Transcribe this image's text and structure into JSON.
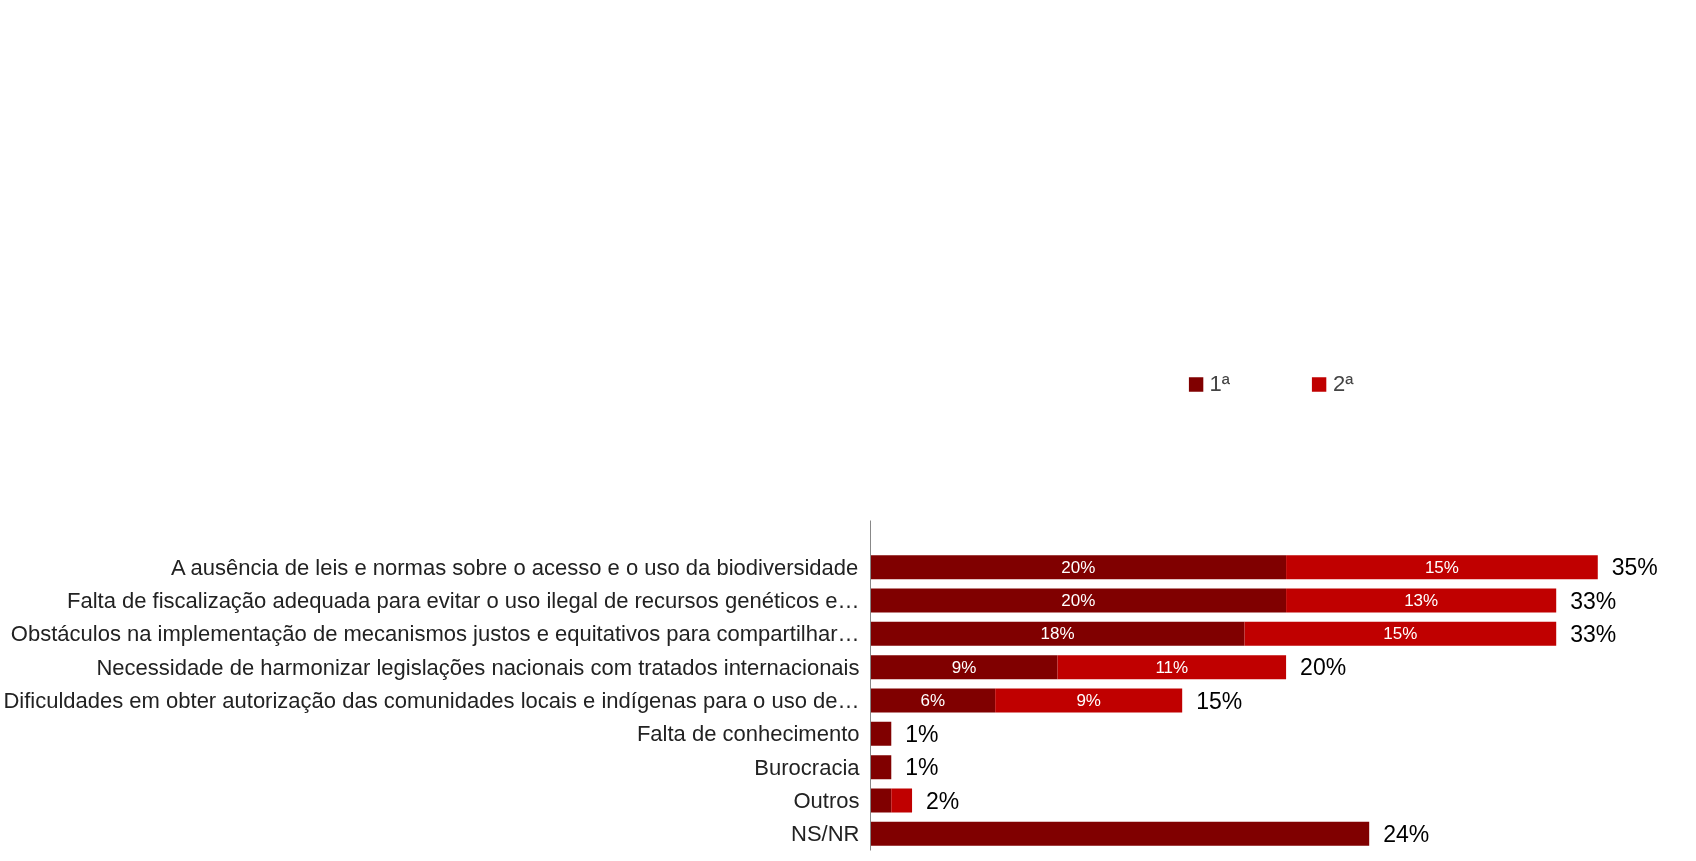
{
  "chart_data": {
    "type": "bar",
    "orientation": "horizontal",
    "stacked": true,
    "legend": "top",
    "grid": false,
    "tick_labels": "y",
    "categories": [
      "A ausência de leis e normas sobre o acesso e o uso da biodiversidade",
      "Falta de fiscalização adequada para evitar o uso ilegal de recursos genéticos e…",
      "Obstáculos na implementação de mecanismos justos e equitativos para compartilhar…",
      "Necessidade de harmonizar legislações nacionais com tratados internacionais",
      "Dificuldades em obter autorização das comunidades locais e indígenas para o uso de…",
      "Falta de conhecimento",
      "Burocracia",
      "Outros",
      "NS/NR"
    ],
    "series": [
      {
        "name": "1ª",
        "color": "#800000",
        "values": [
          20,
          20,
          18,
          9,
          6,
          1,
          1,
          1,
          24
        ],
        "value_labels": [
          "20%",
          "20%",
          "18%",
          "9%",
          "6%",
          null,
          null,
          null,
          null
        ]
      },
      {
        "name": "2ª",
        "color": "#c00000",
        "values": [
          15,
          13,
          15,
          11,
          9,
          0,
          0,
          1,
          0
        ],
        "value_labels": [
          "15%",
          "13%",
          "15%",
          "11%",
          "9%",
          null,
          null,
          null,
          null
        ]
      }
    ],
    "totals": [
      "35%",
      "33%",
      "33%",
      "20%",
      "15%",
      "1%",
      "1%",
      "2%",
      "24%"
    ]
  }
}
